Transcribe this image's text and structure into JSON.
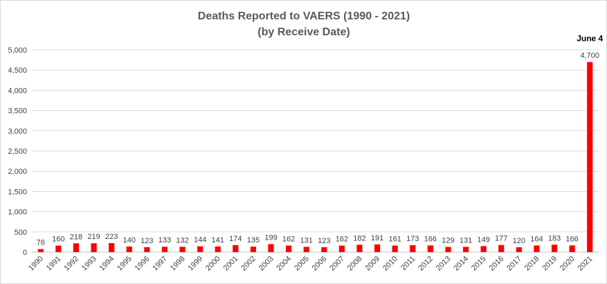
{
  "chart_data": {
    "type": "bar",
    "title": "Deaths Reported to VAERS (1990 - 2021)",
    "subtitle": "(by Receive Date)",
    "xlabel": "",
    "ylabel": "",
    "categories": [
      "1990",
      "1991",
      "1992",
      "1993",
      "1994",
      "1995",
      "1996",
      "1997",
      "1998",
      "1999",
      "2000",
      "2001",
      "2002",
      "2003",
      "2004",
      "2005",
      "2006",
      "2007",
      "2008",
      "2009",
      "2010",
      "2011",
      "2012",
      "2013",
      "2014",
      "2015",
      "2016",
      "2017",
      "2018",
      "2019",
      "2020",
      "2021"
    ],
    "values": [
      76,
      160,
      218,
      219,
      223,
      140,
      123,
      133,
      132,
      144,
      141,
      174,
      135,
      199,
      162,
      131,
      123,
      162,
      182,
      191,
      161,
      173,
      166,
      129,
      131,
      149,
      177,
      120,
      164,
      183,
      166,
      4700
    ],
    "data_labels": [
      "76",
      "160",
      "218",
      "219",
      "223",
      "140",
      "123",
      "133",
      "132",
      "144",
      "141",
      "174",
      "135",
      "199",
      "162",
      "131",
      "123",
      "162",
      "182",
      "191",
      "161",
      "173",
      "166",
      "129",
      "131",
      "149",
      "177",
      "120",
      "164",
      "183",
      "166",
      "4,700"
    ],
    "ylim": [
      0,
      5000
    ],
    "y_ticks": [
      0,
      500,
      1000,
      1500,
      2000,
      2500,
      3000,
      3500,
      4000,
      4500,
      5000
    ],
    "y_tick_labels": [
      "0",
      "500",
      "1,000",
      "1,500",
      "2,000",
      "2,500",
      "3,000",
      "3,500",
      "4,000",
      "4,500",
      "5,000"
    ],
    "grid": true,
    "legend": "none",
    "bar_color": "#ff0000",
    "annotation": {
      "category": "2021",
      "text": "June 4"
    }
  }
}
